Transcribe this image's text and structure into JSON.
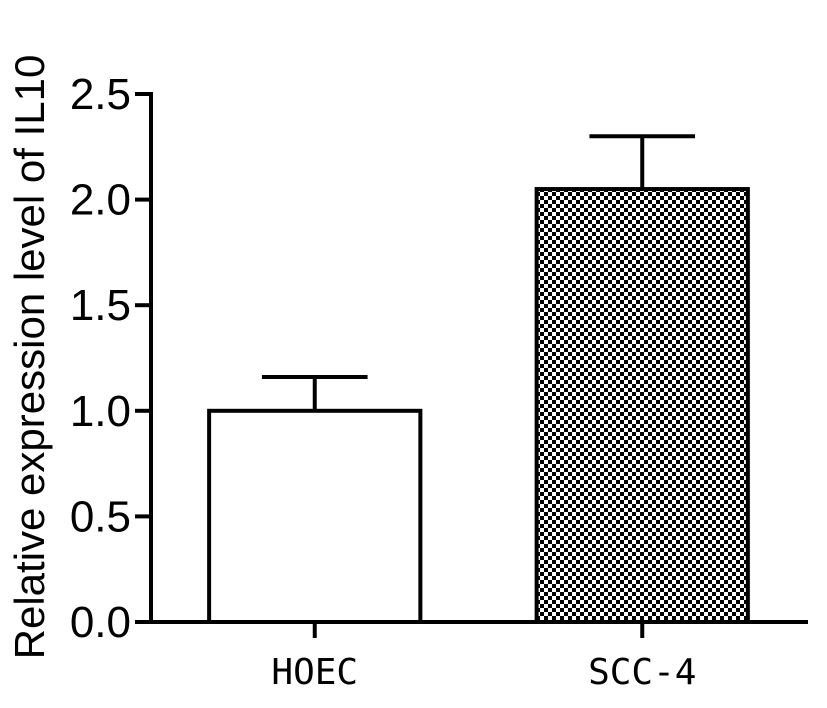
{
  "chart_data": {
    "type": "bar",
    "categories": [
      "HOEC",
      "SCC-4"
    ],
    "values": [
      1.0,
      2.05
    ],
    "errors": [
      0.16,
      0.25
    ],
    "fills": [
      "solid-white",
      "checkered"
    ],
    "ylabel": "Relative expression level of IL10",
    "xlabel": "",
    "ylim": [
      0,
      2.5
    ],
    "yticks": [
      0.0,
      0.5,
      1.0,
      1.5,
      2.0,
      2.5
    ],
    "ytick_labels": [
      "0.0",
      "0.5",
      "1.0",
      "1.5",
      "2.0",
      "2.5"
    ],
    "grid": false,
    "colors": {
      "bar_fill": "#ffffff",
      "pattern": "#000000",
      "axis": "#000000"
    }
  }
}
